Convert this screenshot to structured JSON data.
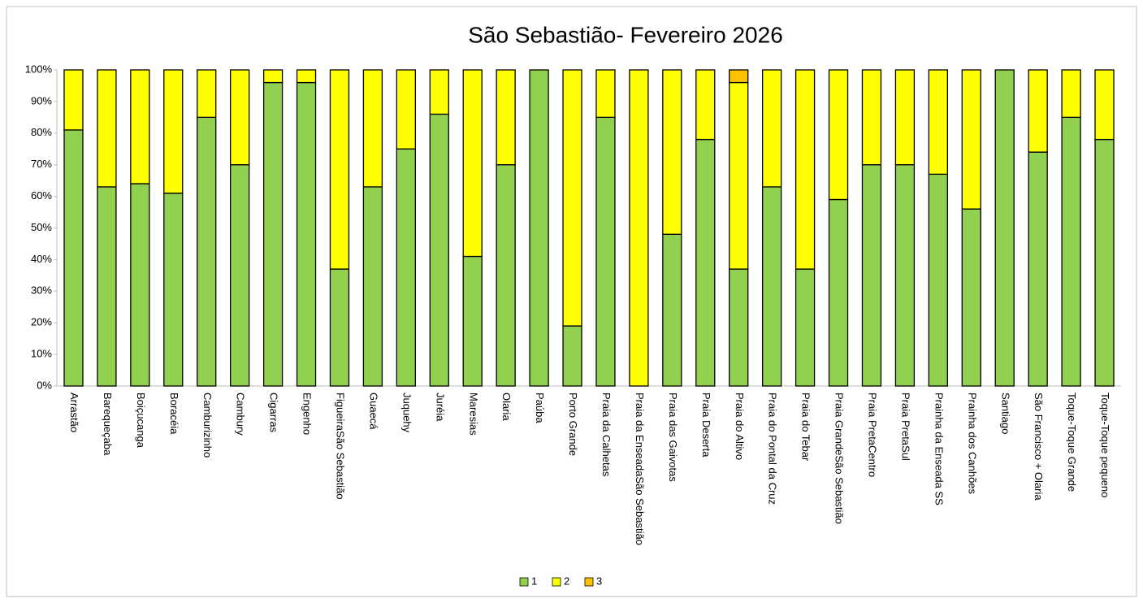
{
  "chart_data": {
    "type": "stacked_bar_100",
    "title": "São Sebastião- Fevereiro 2026",
    "categories": [
      "Arrastão",
      "Barequeçaba",
      "Boiçucanga",
      "Boracéia",
      "Camburizinho",
      "Cambury",
      "Cigarras",
      "Engenho",
      "FigueiraSão Sebastião",
      "Guaecá",
      "Juquehy",
      "Juréia",
      "Maresias",
      "Olaria",
      "Paúba",
      "Porto Grande",
      "Praia da Calhetas",
      "Praia da EnseadaSão Sebastião",
      "Praia das Gaivotas",
      "Praia Deserta",
      "Praia do Altivo",
      "Praia do Pontal da Cruz",
      "Praia do Tebar",
      "Praia GrandeSão Sebastião",
      "Praia PretaCentro",
      "Praia PretaSul",
      "Prainha da Enseada SS",
      "Prainha dos Canhões",
      "Santiago",
      "São Francisco + Olaria",
      "Toque-Toque Grande",
      "Toque-Toque pequeno"
    ],
    "series": [
      {
        "name": "1",
        "color": "#92d050",
        "values": [
          81,
          63,
          64,
          61,
          85,
          70,
          96,
          96,
          37,
          63,
          75,
          86,
          41,
          70,
          100,
          19,
          85,
          0,
          48,
          78,
          37,
          63,
          37,
          59,
          70,
          70,
          67,
          56,
          100,
          74,
          85,
          78
        ]
      },
      {
        "name": "2",
        "color": "#ffff00",
        "values": [
          19,
          37,
          36,
          39,
          15,
          30,
          4,
          4,
          63,
          37,
          25,
          14,
          59,
          30,
          0,
          81,
          15,
          100,
          52,
          22,
          59,
          37,
          63,
          41,
          30,
          30,
          33,
          44,
          0,
          26,
          15,
          22
        ]
      },
      {
        "name": "3",
        "color": "#ffc000",
        "values": [
          0,
          0,
          0,
          0,
          0,
          0,
          0,
          0,
          0,
          0,
          0,
          0,
          0,
          0,
          0,
          0,
          0,
          0,
          0,
          0,
          4,
          0,
          0,
          0,
          0,
          0,
          0,
          0,
          0,
          0,
          0,
          0
        ]
      }
    ],
    "ylim": [
      0,
      100
    ],
    "yticks": [
      {
        "value": 0,
        "label": "0%"
      },
      {
        "value": 10,
        "label": "10%"
      },
      {
        "value": 20,
        "label": "20%"
      },
      {
        "value": 30,
        "label": "30%"
      },
      {
        "value": 40,
        "label": "40%"
      },
      {
        "value": 50,
        "label": "50%"
      },
      {
        "value": 60,
        "label": "60%"
      },
      {
        "value": 70,
        "label": "70%"
      },
      {
        "value": 80,
        "label": "80%"
      },
      {
        "value": 90,
        "label": "90%"
      },
      {
        "value": 100,
        "label": "100%"
      }
    ],
    "legend": "bottom"
  }
}
